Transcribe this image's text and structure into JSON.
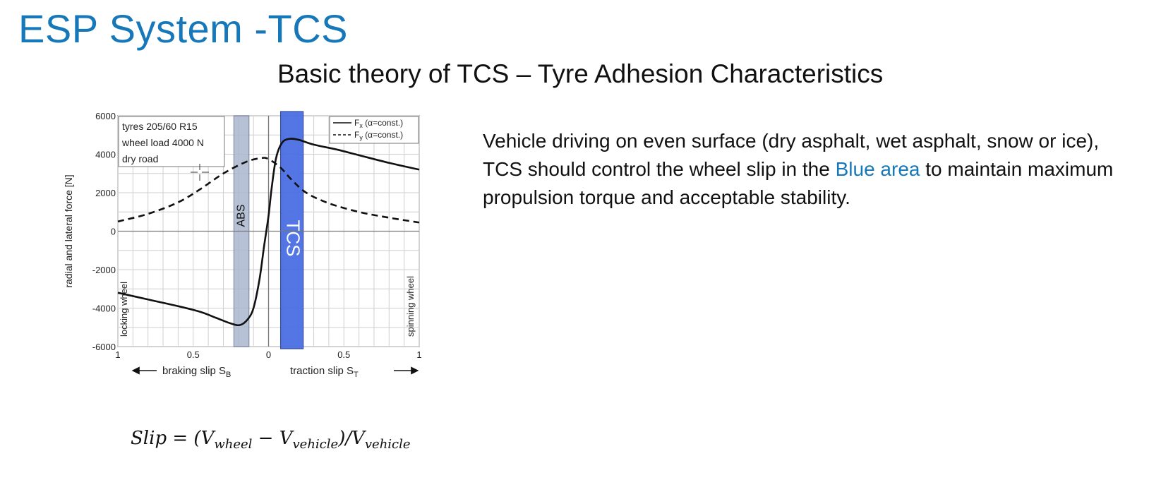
{
  "slide": {
    "title": "ESP System -TCS",
    "subtitle": "Basic theory of TCS – Tyre Adhesion Characteristics"
  },
  "description": {
    "part1": "Vehicle driving on even surface (dry asphalt, wet asphalt, snow or ice), TCS should control the wheel slip in the ",
    "highlight": "Blue area",
    "part2": " to maintain maximum propulsion torque and acceptable stability."
  },
  "formula": {
    "lhs": "Slip",
    "equals": "=",
    "open": "(V",
    "sub1": "wheel",
    "minus": "−",
    "v2": "V",
    "sub2": "vehicle",
    "close": ")/V",
    "sub3": "vehicle"
  },
  "colors": {
    "title_blue": "#1677b9",
    "abs_band": "#aab7cf",
    "tcs_band": "#4a6fe3",
    "curve": "#111111"
  },
  "chart_data": {
    "type": "line",
    "ylabel": "radial and lateral force [N]",
    "ylim": [
      -6000,
      6000
    ],
    "yticks": [
      "6000",
      "4000",
      "2000",
      "0",
      "-2000",
      "-4000",
      "-6000"
    ],
    "ytick_values": [
      6000,
      4000,
      2000,
      0,
      -2000,
      -4000,
      -6000
    ],
    "xticks": [
      "1",
      "0.5",
      "0",
      "0.5",
      "1"
    ],
    "xtick_values": [
      -1,
      -0.5,
      0,
      0.5,
      1
    ],
    "xlim": [
      -1,
      1
    ],
    "x_note": "negative x = braking slip (left), positive x = traction slip (right)",
    "x_label_left": "braking slip S",
    "x_label_left_sub": "B",
    "x_label_right": "traction slip S",
    "x_label_right_sub": "T",
    "grid": true,
    "info_box": [
      "tyres 205/60 R15",
      "wheel load 4000 N",
      "dry road"
    ],
    "legend": [
      {
        "label": "F",
        "sub": "x",
        "suffix": " (α=const.)",
        "style": "solid"
      },
      {
        "label": "F",
        "sub": "y",
        "suffix": " (α=const.)",
        "style": "dashed"
      }
    ],
    "legend_position": "top-right",
    "side_labels": {
      "left": "locking wheel",
      "right": "spinning wheel"
    },
    "bands": [
      {
        "label": "ABS",
        "from": -0.23,
        "to": -0.13,
        "color": "#aab7cf"
      },
      {
        "label": "TCS",
        "from": 0.08,
        "to": 0.23,
        "color": "#4a6fe3"
      }
    ],
    "series": [
      {
        "name": "Fx",
        "style": "solid",
        "points": [
          [
            -1,
            -3200
          ],
          [
            -0.8,
            -3550
          ],
          [
            -0.6,
            -3900
          ],
          [
            -0.45,
            -4200
          ],
          [
            -0.35,
            -4500
          ],
          [
            -0.25,
            -4800
          ],
          [
            -0.19,
            -4880
          ],
          [
            -0.14,
            -4600
          ],
          [
            -0.1,
            -4000
          ],
          [
            -0.06,
            -2500
          ],
          [
            -0.03,
            -800
          ],
          [
            0,
            800
          ],
          [
            0.02,
            2200
          ],
          [
            0.05,
            3800
          ],
          [
            0.09,
            4600
          ],
          [
            0.14,
            4800
          ],
          [
            0.2,
            4750
          ],
          [
            0.3,
            4500
          ],
          [
            0.45,
            4250
          ],
          [
            0.6,
            3950
          ],
          [
            0.8,
            3550
          ],
          [
            1,
            3200
          ]
        ]
      },
      {
        "name": "Fy",
        "style": "dashed",
        "points": [
          [
            -1,
            500
          ],
          [
            -0.8,
            900
          ],
          [
            -0.6,
            1500
          ],
          [
            -0.45,
            2200
          ],
          [
            -0.3,
            3000
          ],
          [
            -0.15,
            3600
          ],
          [
            -0.05,
            3800
          ],
          [
            0,
            3750
          ],
          [
            0.08,
            3300
          ],
          [
            0.15,
            2700
          ],
          [
            0.25,
            2000
          ],
          [
            0.4,
            1450
          ],
          [
            0.6,
            1000
          ],
          [
            0.8,
            700
          ],
          [
            1,
            450
          ]
        ]
      }
    ]
  }
}
